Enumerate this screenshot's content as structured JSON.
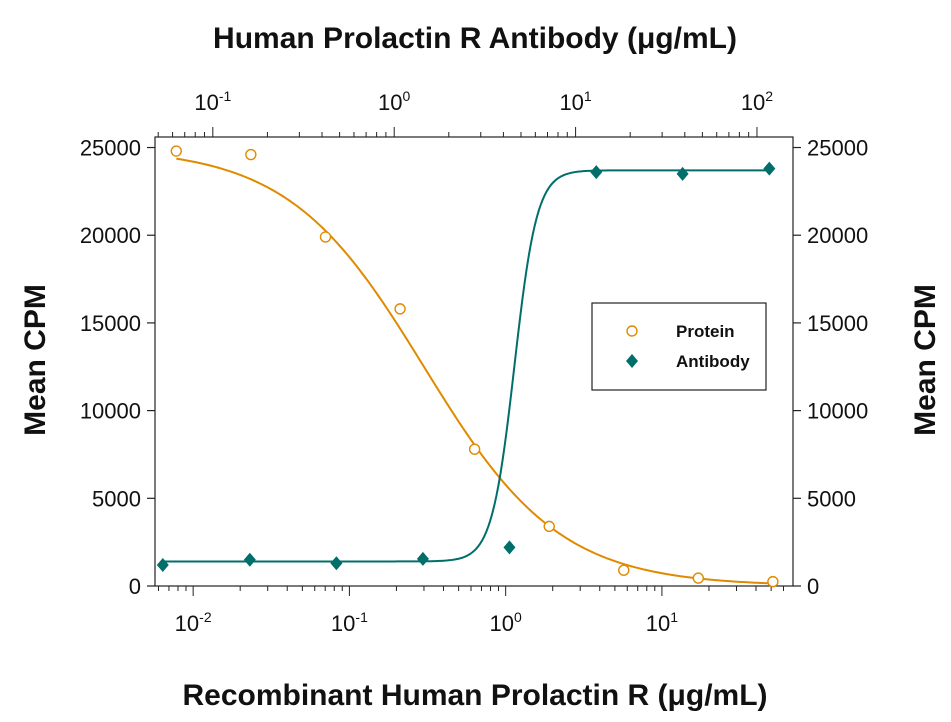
{
  "chart_data": {
    "type": "scatter",
    "title": "Human Prolactin R Antibody (μg/mL)",
    "xlabel": "Recombinant Human Prolactin R  (μg/mL)",
    "ylabel": "Mean CPM",
    "ylabel_right": "Mean CPM",
    "x_scale": "log",
    "xlim": [
      0.0057,
      0.069
    ],
    "xlim_unit_note": "",
    "x_bottom_lim": [
      0.0057,
      69
    ],
    "x_top_lim": [
      0.048,
      158
    ],
    "ylim": [
      0,
      25600
    ],
    "y_ticks": [
      "0",
      "5000",
      "10000",
      "15000",
      "20000",
      "25000"
    ],
    "y_tick_values": [
      0,
      5000,
      10000,
      15000,
      20000,
      25000
    ],
    "x_bottom_ticks": [
      {
        "value": 0.01,
        "base": "10",
        "exp": "-2"
      },
      {
        "value": 0.1,
        "base": "10",
        "exp": "-1"
      },
      {
        "value": 1,
        "base": "10",
        "exp": "0"
      },
      {
        "value": 10,
        "base": "10",
        "exp": "1"
      }
    ],
    "x_top_ticks": [
      {
        "value": 0.1,
        "base": "10",
        "exp": "-1"
      },
      {
        "value": 1,
        "base": "10",
        "exp": "0"
      },
      {
        "value": 10,
        "base": "10",
        "exp": "1"
      },
      {
        "value": 100,
        "base": "10",
        "exp": "2"
      }
    ],
    "grid": false,
    "legend_position": "right-center",
    "series": [
      {
        "name": "Protein",
        "axis": "bottom",
        "marker": "open-circle",
        "color": "#e08a00",
        "x": [
          0.0078,
          0.0234,
          0.0703,
          0.211,
          0.633,
          1.9,
          5.7,
          17.1,
          51.3
        ],
        "y": [
          24800,
          24600,
          19900,
          15800,
          7800,
          3400,
          900,
          450,
          250
        ]
      },
      {
        "name": "Antibody",
        "axis": "top",
        "marker": "filled-diamond",
        "color": "#006e6a",
        "x": [
          0.053,
          0.16,
          0.48,
          1.44,
          4.32,
          13.0,
          38.9,
          117
        ],
        "y": [
          1200,
          1500,
          1300,
          1550,
          2200,
          23600,
          23500,
          23800
        ]
      }
    ],
    "fit_curves": [
      {
        "series": "Protein",
        "type": "4PL",
        "top": 25000,
        "bottom": 0,
        "ec50": 0.3,
        "hill": 1.0
      },
      {
        "series": "Antibody",
        "type": "4PL",
        "top": 23700,
        "bottom": 1400,
        "ec50": 4.6,
        "hill": 7.0
      }
    ]
  }
}
